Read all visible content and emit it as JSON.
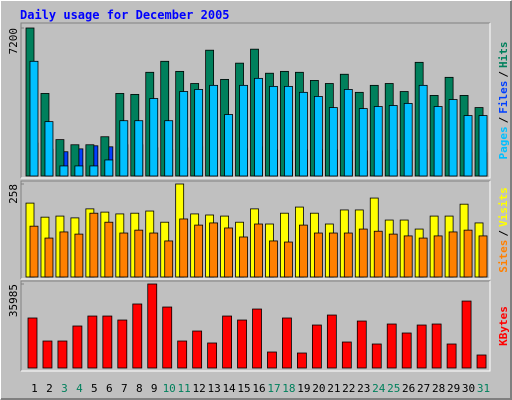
{
  "title": "Daily usage for December 2005",
  "categories": [
    "1",
    "2",
    "3",
    "4",
    "5",
    "6",
    "7",
    "8",
    "9",
    "10",
    "11",
    "12",
    "13",
    "14",
    "15",
    "16",
    "17",
    "18",
    "19",
    "20",
    "21",
    "22",
    "23",
    "24",
    "25",
    "26",
    "27",
    "28",
    "29",
    "30",
    "31"
  ],
  "category_colors": [
    "#000000",
    "#000000",
    "#00805c",
    "#00805c",
    "#000000",
    "#000000",
    "#000000",
    "#000000",
    "#000000",
    "#00805c",
    "#00805c",
    "#000000",
    "#000000",
    "#000000",
    "#000000",
    "#000000",
    "#00805c",
    "#00805c",
    "#000000",
    "#000000",
    "#000000",
    "#000000",
    "#000000",
    "#00805c",
    "#00805c",
    "#000000",
    "#000000",
    "#000000",
    "#000000",
    "#000000",
    "#00805c"
  ],
  "legend_separator": "/",
  "chart_data": [
    {
      "type": "bar",
      "ylim": [
        0,
        7200
      ],
      "yticks": [
        7200
      ],
      "series": [
        {
          "name": "Pages",
          "color": "#00c0ff",
          "values": [
            5580,
            2645,
            490,
            490,
            490,
            780,
            2690,
            2690,
            3770,
            2690,
            4110,
            4210,
            4410,
            2990,
            4410,
            4750,
            4360,
            4360,
            4070,
            3870,
            3330,
            4210,
            3280,
            3380,
            3430,
            3530,
            4410,
            3380,
            3720,
            2940,
            2940
          ]
        },
        {
          "name": "Files",
          "color": "#0040ff",
          "values": [
            1600,
            1300,
            1180,
            1320,
            1470,
            1420,
            1520,
            1520,
            1370,
            1270,
            1370,
            1420,
            1420,
            1270,
            1320,
            1420,
            1270,
            1220,
            1270,
            1270,
            1270,
            1220,
            1220,
            1220,
            1270,
            1220,
            1270,
            1220,
            1180,
            1130,
            1130
          ]
        },
        {
          "name": "Hits",
          "color": "#00805c",
          "values": [
            7200,
            4016,
            1770,
            1520,
            1520,
            1910,
            4016,
            3970,
            5045,
            5580,
            5090,
            4500,
            6120,
            4700,
            5490,
            6170,
            5000,
            5090,
            5045,
            4650,
            4500,
            4950,
            4070,
            4410,
            4500,
            4110,
            5530,
            3920,
            4800,
            3920,
            3330
          ]
        }
      ]
    },
    {
      "type": "bar",
      "ylim": [
        0,
        258
      ],
      "yticks": [
        258
      ],
      "series": [
        {
          "name": "Sites",
          "color": "#ff8000",
          "values": [
            141,
            108,
            125,
            119,
            177,
            152,
            122,
            130,
            122,
            100,
            161,
            144,
            150,
            136,
            111,
            147,
            100,
            97,
            144,
            122,
            122,
            122,
            133,
            127,
            119,
            114,
            108,
            114,
            125,
            130,
            114
          ]
        },
        {
          "name": "Visits",
          "color": "#ffff00",
          "values": [
            205,
            166,
            169,
            164,
            189,
            180,
            175,
            177,
            183,
            152,
            258,
            175,
            172,
            169,
            152,
            189,
            147,
            177,
            194,
            177,
            147,
            186,
            186,
            219,
            158,
            158,
            133,
            169,
            169,
            202,
            150
          ]
        }
      ]
    },
    {
      "type": "bar",
      "ylim": [
        0,
        35985
      ],
      "yticks": [
        35985
      ],
      "series": [
        {
          "name": "KBytes",
          "color": "#ff0000",
          "values": [
            21420,
            11560,
            11560,
            17990,
            22260,
            22260,
            20550,
            27420,
            35985,
            26120,
            11560,
            15840,
            10710,
            22260,
            20550,
            25260,
            6850,
            21420,
            6420,
            18410,
            22690,
            11130,
            20120,
            10280,
            18840,
            14990,
            18410,
            18840,
            10280,
            28680,
            5570
          ]
        }
      ]
    }
  ]
}
